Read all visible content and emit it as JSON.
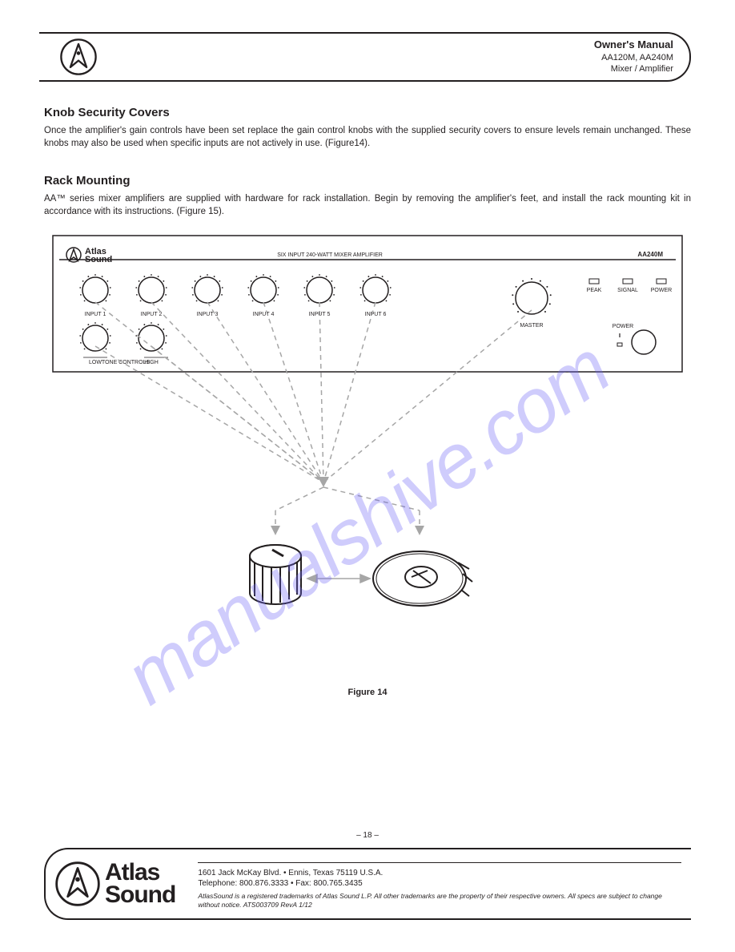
{
  "header": {
    "brand_line1": "Atlas",
    "brand_line2": "Sound",
    "title": "Owner's Manual",
    "subtitle1": "AA120M, AA240M",
    "subtitle2": "Mixer / Amplifier"
  },
  "knob_section": {
    "title": "Knob Security Covers",
    "body": "Once the amplifier's gain controls have been set replace the gain control knobs with the supplied security covers to ensure levels remain unchanged. These knobs may also be used when specific inputs are not actively in use. (Figure14)."
  },
  "rack_section": {
    "title": "Rack Mounting",
    "body": "AA™ series mixer amplifiers are supplied with hardware for rack installation. Begin by removing the amplifier's feet, and install the rack mounting kit in accordance with its instructions. (Figure 15)."
  },
  "figure_caption": "Figure 14",
  "panel_logo": {
    "line1": "Atlas",
    "line2": "Sound"
  },
  "panel_sub": "SIX INPUT 240-WATT MIXER AMPLIFIER",
  "panel_model": "AA240M",
  "controls": {
    "top_row": [
      {
        "label": "INPUT 1"
      },
      {
        "label": "INPUT 2"
      },
      {
        "label": "INPUT 3"
      },
      {
        "label": "INPUT 4"
      },
      {
        "label": "INPUT 5"
      },
      {
        "label": "INPUT 6"
      }
    ],
    "bottom_row": [
      {
        "label": "LOW"
      },
      {
        "label": "HIGH"
      }
    ],
    "master": {
      "label": "MASTER"
    },
    "leds": [
      {
        "label": "PEAK"
      },
      {
        "label": "SIGNAL"
      },
      {
        "label": "POWER"
      }
    ],
    "tone_label": "TONE CONTROLS",
    "power_label": "POWER"
  },
  "colors": {
    "ink": "#231f20",
    "dashed": "#a6a6a6",
    "dashed_opacity": 0.85
  },
  "footer": {
    "brand_line1": "Atlas",
    "brand_line2": "Sound",
    "address": "1601 Jack McKay Blvd.  •  Ennis, Texas 75119 U.S.A.",
    "phone": "Telephone: 800.876.3333  •  Fax: 800.765.3435",
    "disclaimer": "AtlasSound is a registered trademarks of Atlas Sound L.P. All other trademarks are the property of their respective owners. All specs are subject to change without notice. ATS003709 RevA 1/12"
  },
  "page_number": "– 18 –",
  "watermark": "manualshive.com"
}
